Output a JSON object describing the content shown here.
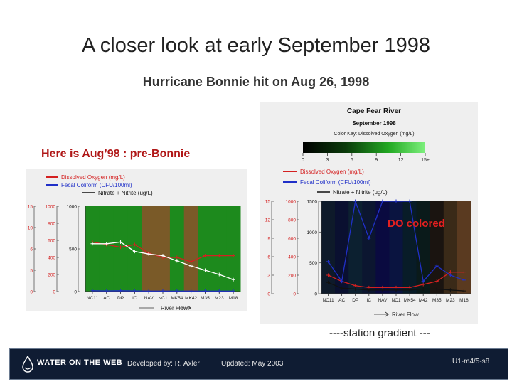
{
  "slide": {
    "title": "A closer look at early September 1998",
    "subtitle": "Hurricane Bonnie hit on Aug 26, 1998",
    "aug_label": "Here is Aug’98 : pre-Bonnie",
    "do_colored_label": "DO colored",
    "gradient_label": "----station gradient ---"
  },
  "footer": {
    "logo_text": "WATER ON THE WEB",
    "developed_by": "Developed by: R. Axler",
    "updated": "Updated: May 2003",
    "code": "U1-m4/5-s8"
  },
  "colors": {
    "oxygen": "#d42020",
    "coliform": "#2030c8",
    "nitrate": "#111111",
    "background_green": "#1d8a1d",
    "background_brown": "#7a5a28",
    "footer_bg": "#0f1c33"
  },
  "chart_data": [
    {
      "type": "line",
      "title": "",
      "x_categories": [
        "NC11",
        "AC",
        "DP",
        "IC",
        "NAV",
        "NC1",
        "MK54",
        "MK42",
        "M35",
        "M23",
        "M18"
      ],
      "xlabel": "River Flow",
      "legend": [
        "Dissolved Oxygen (mg/L)",
        "Fecal Coliform (CFU/100ml)",
        "Nitrate + Nitrite (ug/L)"
      ],
      "y_axes": [
        {
          "ticks": [
            "0",
            "5",
            "6",
            "10",
            "15"
          ]
        },
        {
          "ticks": [
            "0",
            "200",
            "400",
            "600",
            "800",
            "1000"
          ]
        },
        {
          "ticks": [
            "0",
            "500",
            "1000"
          ]
        }
      ],
      "background_do_colors": [
        "green",
        "green",
        "green",
        "green",
        "brown",
        "brown",
        "green",
        "brown",
        "green",
        "green",
        "green"
      ],
      "series": [
        {
          "name": "Dissolved Oxygen (mg/L)",
          "values": [
            5.8,
            5.5,
            5.2,
            5.5,
            4.5,
            4.0,
            4.0,
            3.5,
            4.2,
            4.2,
            4.2
          ]
        },
        {
          "name": "Fecal Coliform (CFU/100ml)",
          "values": [
            10,
            8,
            10,
            8,
            6,
            6,
            6,
            6,
            6,
            6,
            6
          ]
        },
        {
          "name": "Nitrate + Nitrite (ug/L)",
          "values": [
            560,
            560,
            580,
            470,
            440,
            420,
            360,
            300,
            250,
            200,
            140
          ]
        }
      ]
    },
    {
      "type": "line",
      "title": "Cape Fear River",
      "subtitle": "September 1998",
      "color_key_label": "Color Key: Dissolved Oxygen (mg/L)",
      "color_key_ticks": [
        "0",
        "3",
        "6",
        "9",
        "12",
        "15+"
      ],
      "x_categories": [
        "NC11",
        "AC",
        "DP",
        "IC",
        "NAV",
        "NC1",
        "MK54",
        "M42",
        "M35",
        "M23",
        "M18"
      ],
      "xlabel": "River Flow",
      "legend": [
        "Dissolved Oxygen (mg/L)",
        "Fecal Coliform (CFU/100ml)",
        "Nitrate + Nitrite (ug/L)"
      ],
      "y_axes": [
        {
          "ticks": [
            "0",
            "3",
            "6",
            "9",
            "12",
            "15"
          ]
        },
        {
          "ticks": [
            "0",
            "200",
            "400",
            "600",
            "800",
            "1000"
          ]
        },
        {
          "ticks": [
            "0",
            "500",
            "1000",
            "1500"
          ]
        }
      ],
      "series": [
        {
          "name": "Dissolved Oxygen (mg/L)",
          "values": [
            3.0,
            2.0,
            1.3,
            1.0,
            1.0,
            1.0,
            1.0,
            1.5,
            2.0,
            3.5,
            3.5
          ]
        },
        {
          "name": "Fecal Coliform (CFU/100ml)",
          "values": [
            520,
            200,
            1500,
            900,
            1500,
            1500,
            1500,
            200,
            450,
            300,
            220
          ]
        },
        {
          "name": "Nitrate + Nitrite (ug/L)",
          "values": [
            120,
            60,
            50,
            40,
            40,
            40,
            40,
            50,
            50,
            40,
            30
          ]
        }
      ]
    }
  ]
}
